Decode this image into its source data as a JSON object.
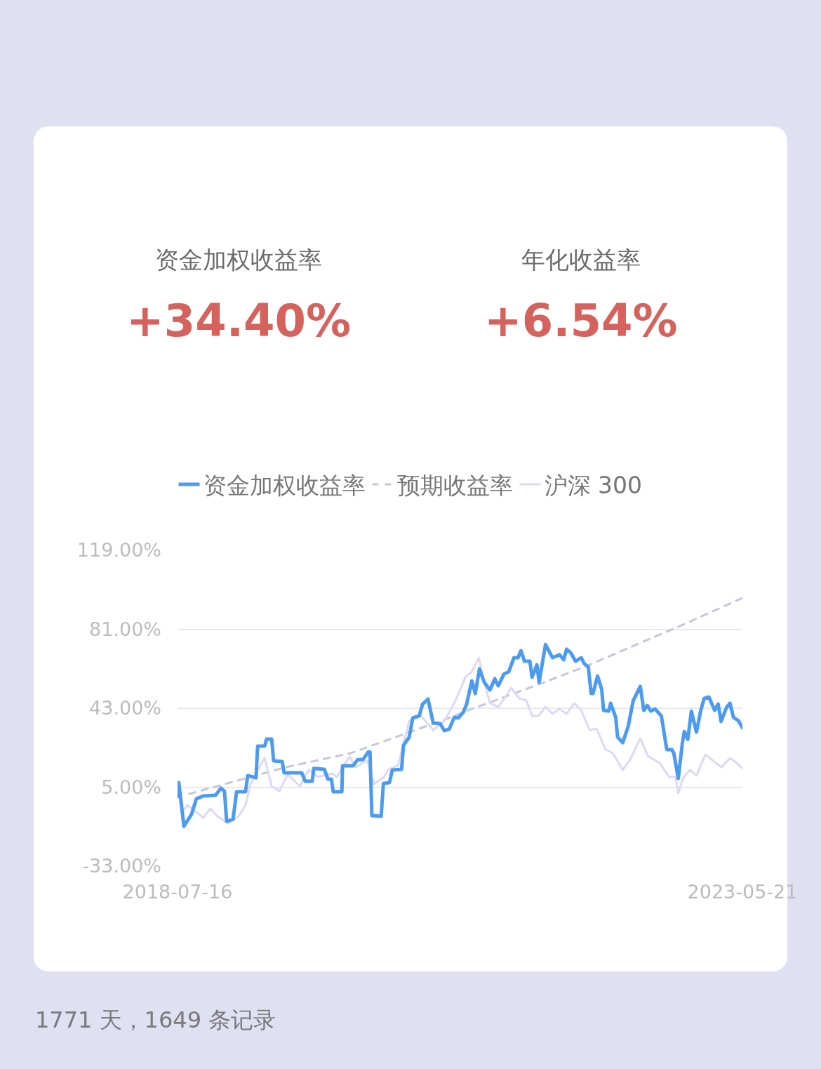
{
  "chart_data": {
    "type": "line",
    "xlim": [
      "2018-07-16",
      "2023-05-21"
    ],
    "xticks": [
      "2018-07-16",
      "2023-05-21"
    ],
    "ylim": [
      -33,
      119
    ],
    "yticks": [
      {
        "value": -33,
        "label": "-33.00%"
      },
      {
        "value": 5,
        "label": "5.00%"
      },
      {
        "value": 43,
        "label": "43.00%"
      },
      {
        "value": 81,
        "label": "81.00%"
      },
      {
        "value": 119,
        "label": "119.00%"
      }
    ],
    "grid": "y",
    "legend": "top",
    "marker": "none",
    "annotations": [
      "资金加权收益率",
      "+34.40%",
      "年化收益率",
      "+6.54%",
      "1771 天，1649 条记录"
    ],
    "series": [
      {
        "name": "资金加权收益率",
        "color": "#4d9bef",
        "line_style": "solid",
        "x": [
          "2018-07-16",
          "2018-07-20",
          "2018-08-05",
          "2018-08-29",
          "2018-09-13",
          "2018-10-05",
          "2018-11-12",
          "2018-11-29",
          "2018-12-10",
          "2018-12-17",
          "2019-01-06",
          "2019-01-17",
          "2019-02-14",
          "2019-02-21",
          "2019-03-19",
          "2019-03-24",
          "2019-04-15",
          "2019-04-21",
          "2019-05-07",
          "2019-05-13",
          "2019-06-09",
          "2019-06-15",
          "2019-08-09",
          "2019-08-20",
          "2019-09-11",
          "2019-09-16",
          "2019-10-19",
          "2019-10-30",
          "2019-11-10",
          "2019-11-16",
          "2019-12-13",
          "2019-12-15",
          "2020-01-17",
          "2020-02-01",
          "2020-02-17",
          "2020-03-05",
          "2020-03-10",
          "2020-03-16",
          "2020-04-14",
          "2020-04-21",
          "2020-05-10",
          "2020-05-19",
          "2020-06-17",
          "2020-06-23",
          "2020-07-11",
          "2020-07-22",
          "2020-08-11",
          "2020-08-22",
          "2020-09-08",
          "2020-09-24",
          "2020-10-16",
          "2020-10-29",
          "2020-11-13",
          "2020-11-29",
          "2020-12-12",
          "2020-12-27",
          "2021-01-07",
          "2021-01-23",
          "2021-02-03",
          "2021-02-16",
          "2021-03-03",
          "2021-03-21",
          "2021-04-05",
          "2021-04-16",
          "2021-05-04",
          "2021-05-19",
          "2021-06-04",
          "2021-06-17",
          "2021-06-26",
          "2021-07-07",
          "2021-07-24",
          "2021-07-31",
          "2021-08-15",
          "2021-08-22",
          "2021-09-11",
          "2021-10-03",
          "2021-10-25",
          "2021-11-07",
          "2021-11-16",
          "2021-11-29",
          "2021-12-14",
          "2022-01-01",
          "2022-01-10",
          "2022-01-23",
          "2022-02-01",
          "2022-02-07",
          "2022-02-21",
          "2022-03-06",
          "2022-03-12",
          "2022-03-28",
          "2022-04-03",
          "2022-04-19",
          "2022-04-25",
          "2022-05-11",
          "2022-05-28",
          "2022-06-13",
          "2022-07-05",
          "2022-07-16",
          "2022-07-27",
          "2022-08-07",
          "2022-08-20",
          "2022-09-09",
          "2022-09-26",
          "2022-10-12",
          "2022-10-18",
          "2022-11-01",
          "2022-11-14",
          "2022-11-20",
          "2022-12-01",
          "2022-12-12",
          "2022-12-28",
          "2023-01-10",
          "2023-01-21",
          "2023-02-05",
          "2023-02-23",
          "2023-03-06",
          "2023-03-15",
          "2023-04-01",
          "2023-04-12",
          "2023-04-23",
          "2023-05-09",
          "2023-05-21"
        ],
        "values": [
          0.4,
          7.2,
          -13.8,
          -8,
          -0.6,
          0.8,
          1.1,
          4.5,
          3.1,
          -11.4,
          -10.4,
          2.8,
          2.8,
          10.6,
          9.5,
          24.8,
          24.8,
          28.1,
          28.1,
          17.7,
          17.3,
          11.9,
          11.9,
          7.9,
          7.9,
          14,
          13.6,
          8.9,
          8.9,
          2.8,
          2.8,
          15.3,
          15.3,
          18.3,
          18.3,
          22,
          22,
          -8.7,
          -9,
          6.8,
          7.2,
          13.3,
          13.6,
          25.1,
          29.1,
          38.3,
          39.3,
          45,
          47.4,
          35.9,
          35.6,
          32.2,
          32.9,
          38.6,
          38.3,
          41,
          45,
          56.2,
          50.1,
          61.9,
          55.5,
          51.8,
          57.2,
          53.8,
          59.5,
          60.6,
          67.3,
          67.3,
          70.7,
          65.6,
          65.6,
          57.9,
          63.9,
          55.5,
          73.7,
          67.3,
          68.7,
          66.3,
          71.4,
          69.7,
          65.6,
          67.3,
          64.6,
          62.9,
          50.1,
          50.1,
          58.5,
          52.1,
          42,
          41.6,
          45.4,
          38.6,
          29.1,
          26.4,
          34.2,
          46.7,
          53.5,
          42,
          44.3,
          41.6,
          42.7,
          39.3,
          23.1,
          23.1,
          21.4,
          9.2,
          26.4,
          31.8,
          28.1,
          41.6,
          31.5,
          41.6,
          47.7,
          48.4,
          42,
          45,
          36.6,
          43.3,
          45.4,
          38.6,
          36.9,
          33.5
        ]
      },
      {
        "name": "预期收益率",
        "color": "#c3c8dc",
        "line_style": "dashed",
        "x": [
          "2018-08-22",
          "2019-06-20",
          "2020-01-10",
          "2020-11-13",
          "2021-01-12",
          "2021-09-02",
          "2022-01-27",
          "2022-06-24",
          "2022-11-16",
          "2023-05-20"
        ],
        "values": [
          1.8,
          14.6,
          21.4,
          38.3,
          42,
          55.2,
          63.9,
          73.7,
          83.2,
          96
        ]
      },
      {
        "name": "沪深 300",
        "color": "#ddd8f6",
        "line_style": "solid",
        "x": [
          "2018-07-31",
          "2018-08-16",
          "2018-10-05",
          "2018-10-27",
          "2018-11-18",
          "2018-12-21",
          "2019-01-23",
          "2019-02-14",
          "2019-03-02",
          "2019-03-24",
          "2019-04-15",
          "2019-05-07",
          "2019-05-31",
          "2019-06-26",
          "2019-08-03",
          "2019-08-31",
          "2019-09-29",
          "2019-11-12",
          "2019-11-27",
          "2020-01-06",
          "2020-01-26",
          "2020-03-01",
          "2020-03-23",
          "2020-04-23",
          "2020-05-06",
          "2020-06-06",
          "2020-07-11",
          "2020-08-17",
          "2020-09-24",
          "2020-10-29",
          "2020-12-01",
          "2021-01-03",
          "2021-01-23",
          "2021-02-14",
          "2021-03-03",
          "2021-03-21",
          "2021-04-16",
          "2021-05-08",
          "2021-05-26",
          "2021-06-21",
          "2021-07-13",
          "2021-07-31",
          "2021-08-20",
          "2021-09-11",
          "2021-10-03",
          "2021-10-25",
          "2021-11-16",
          "2021-12-10",
          "2022-01-01",
          "2022-01-27",
          "2022-02-18",
          "2022-03-17",
          "2022-04-10",
          "2022-05-11",
          "2022-06-02",
          "2022-07-05",
          "2022-07-29",
          "2022-09-04",
          "2022-10-03",
          "2022-10-23",
          "2022-11-01",
          "2022-11-16",
          "2022-12-08",
          "2022-12-28",
          "2023-01-25",
          "2023-02-27",
          "2023-03-17",
          "2023-04-12",
          "2023-05-04",
          "2023-05-21"
        ],
        "values": [
          -7,
          -3.6,
          -9.7,
          -5.3,
          -9,
          -12.4,
          -9,
          -3.6,
          6.5,
          13.3,
          19,
          5.5,
          3.1,
          11.2,
          5.5,
          13.3,
          9.9,
          11.6,
          9.9,
          19.7,
          14.6,
          18,
          6.5,
          9.9,
          13.3,
          15.6,
          36.9,
          39.3,
          32.5,
          36.9,
          46,
          57.9,
          60.6,
          67.3,
          55.2,
          45.4,
          43.7,
          48.4,
          52.8,
          47.7,
          46.7,
          39.3,
          39.3,
          43.7,
          40.3,
          42.7,
          40.3,
          45.4,
          42,
          32.5,
          33.2,
          23.4,
          21.4,
          13.3,
          18,
          28.5,
          20,
          16.6,
          9.9,
          9.9,
          2.1,
          9.5,
          13.3,
          10.6,
          20.7,
          16.6,
          14.6,
          19,
          16.6,
          13.9
        ]
      }
    ]
  }
}
